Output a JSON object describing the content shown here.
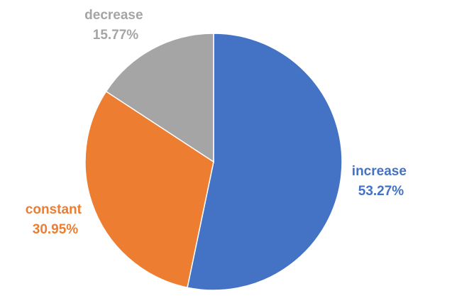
{
  "chart_data": {
    "type": "pie",
    "slices": [
      {
        "name": "increase",
        "value": 53.27,
        "percent_label": "53.27%",
        "color": "#4472C4"
      },
      {
        "name": "constant",
        "value": 30.95,
        "percent_label": "30.95%",
        "color": "#ED7D31"
      },
      {
        "name": "decrease",
        "value": 15.77,
        "percent_label": "15.77%",
        "color": "#A5A5A5"
      }
    ],
    "start_angle": "12 o'clock",
    "direction": "clockwise",
    "legend": "none",
    "data_labels": "outside, category name and percentage"
  }
}
